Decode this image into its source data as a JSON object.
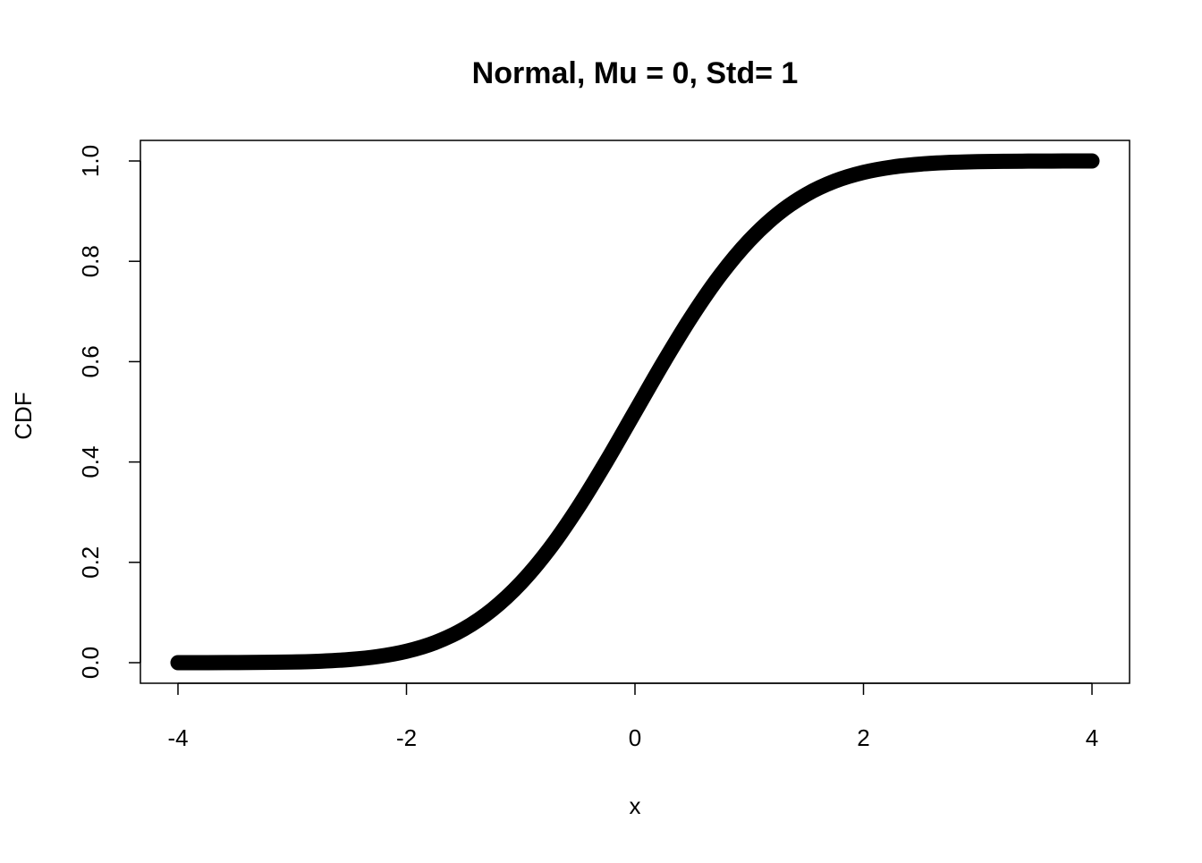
{
  "chart_data": {
    "type": "line",
    "title": "Normal, Mu = 0, Std= 1",
    "xlabel": "x",
    "ylabel": "CDF",
    "xlim": [
      -4,
      4
    ],
    "ylim": [
      0,
      1
    ],
    "x_ticks": [
      "-4",
      "-2",
      "0",
      "2",
      "4"
    ],
    "x_tick_values": [
      -4,
      -2,
      0,
      2,
      4
    ],
    "y_ticks": [
      "0.0",
      "0.2",
      "0.4",
      "0.6",
      "0.8",
      "1.0"
    ],
    "y_tick_values": [
      0,
      0.2,
      0.4,
      0.6,
      0.8,
      1.0
    ],
    "grid": false,
    "series": [
      {
        "name": "CDF",
        "color": "#000000",
        "x": [
          -4,
          -3.75,
          -3.5,
          -3.25,
          -3,
          -2.75,
          -2.5,
          -2.25,
          -2,
          -1.75,
          -1.5,
          -1.25,
          -1,
          -0.75,
          -0.5,
          -0.25,
          0,
          0.25,
          0.5,
          0.75,
          1,
          1.25,
          1.5,
          1.75,
          2,
          2.25,
          2.5,
          2.75,
          3,
          3.25,
          3.5,
          3.75,
          4
        ],
        "y": [
          3e-05,
          9e-05,
          0.00023,
          0.00058,
          0.00135,
          0.00298,
          0.00621,
          0.01222,
          0.02275,
          0.04006,
          0.06681,
          0.10565,
          0.15866,
          0.22663,
          0.30854,
          0.40129,
          0.5,
          0.59871,
          0.69146,
          0.77337,
          0.84134,
          0.89435,
          0.93319,
          0.95994,
          0.97725,
          0.98778,
          0.99379,
          0.99702,
          0.99865,
          0.99942,
          0.99977,
          0.99991,
          0.99997
        ]
      }
    ]
  }
}
